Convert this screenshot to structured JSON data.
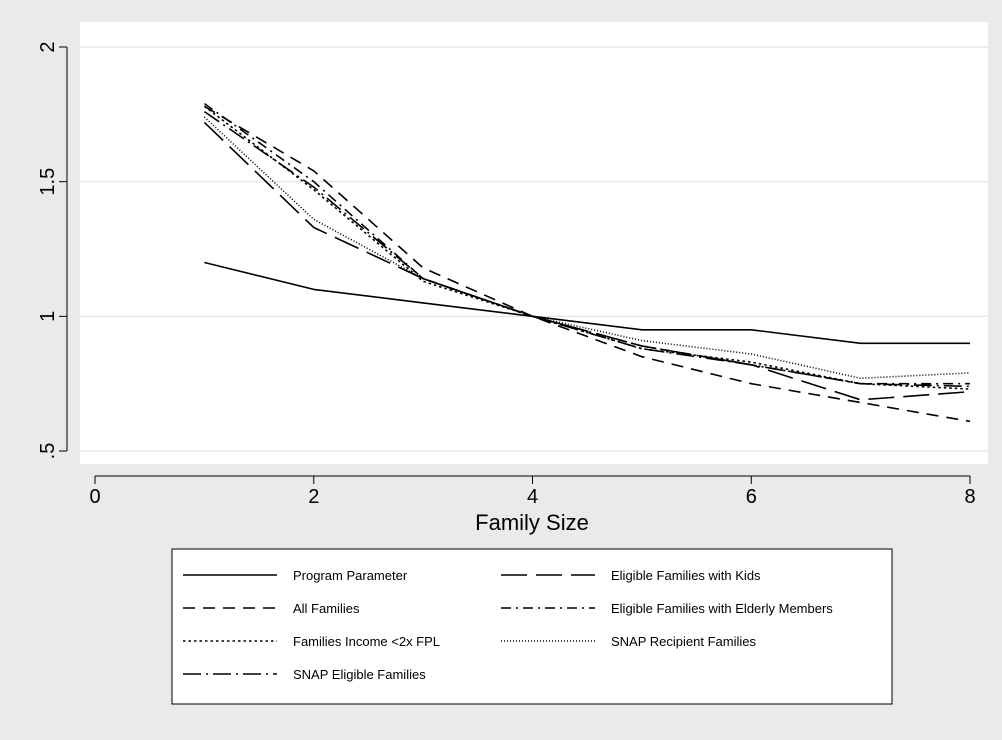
{
  "chart_data": {
    "type": "line",
    "title": "",
    "xlabel": "Family Size",
    "ylabel": "",
    "xlim": [
      0,
      8
    ],
    "ylim": [
      0.5,
      2
    ],
    "x_ticks": [
      0,
      2,
      4,
      6,
      8
    ],
    "x_tick_labels": [
      "0",
      "2",
      "4",
      "6",
      "8"
    ],
    "y_ticks": [
      0.5,
      1,
      1.5,
      2
    ],
    "y_tick_labels": [
      ".5",
      "1",
      "1.5",
      "2"
    ],
    "grid": "horizontal",
    "legend_position": "bottom",
    "x": [
      1,
      2,
      3,
      4,
      5,
      6,
      7,
      8
    ],
    "series": [
      {
        "name": "Program Parameter",
        "dash": "solid",
        "values": [
          1.2,
          1.1,
          1.05,
          1.0,
          0.95,
          0.95,
          0.9,
          0.9
        ]
      },
      {
        "name": "Eligible Families with Kids",
        "dash": "long-dash",
        "values": [
          1.72,
          1.33,
          1.14,
          1.0,
          0.89,
          0.82,
          0.69,
          0.72
        ]
      },
      {
        "name": "All Families",
        "dash": "dash",
        "values": [
          1.78,
          1.54,
          1.18,
          1.0,
          0.85,
          0.75,
          0.68,
          0.61
        ]
      },
      {
        "name": "Eligible Families with Elderly Members",
        "dash": "dash-dot",
        "values": [
          1.79,
          1.5,
          1.14,
          1.0,
          0.89,
          0.82,
          0.75,
          0.75
        ]
      },
      {
        "name": "Families Income <2x FPL",
        "dash": "dot",
        "values": [
          1.78,
          1.47,
          1.13,
          1.0,
          0.88,
          0.83,
          0.75,
          0.73
        ]
      },
      {
        "name": "SNAP Recipient Families",
        "dash": "fine-dot",
        "values": [
          1.74,
          1.36,
          1.14,
          1.0,
          0.91,
          0.86,
          0.77,
          0.79
        ]
      },
      {
        "name": "SNAP Eligible Families",
        "dash": "long-dash-dot",
        "values": [
          1.76,
          1.48,
          1.14,
          1.0,
          0.88,
          0.82,
          0.75,
          0.74
        ]
      }
    ]
  }
}
